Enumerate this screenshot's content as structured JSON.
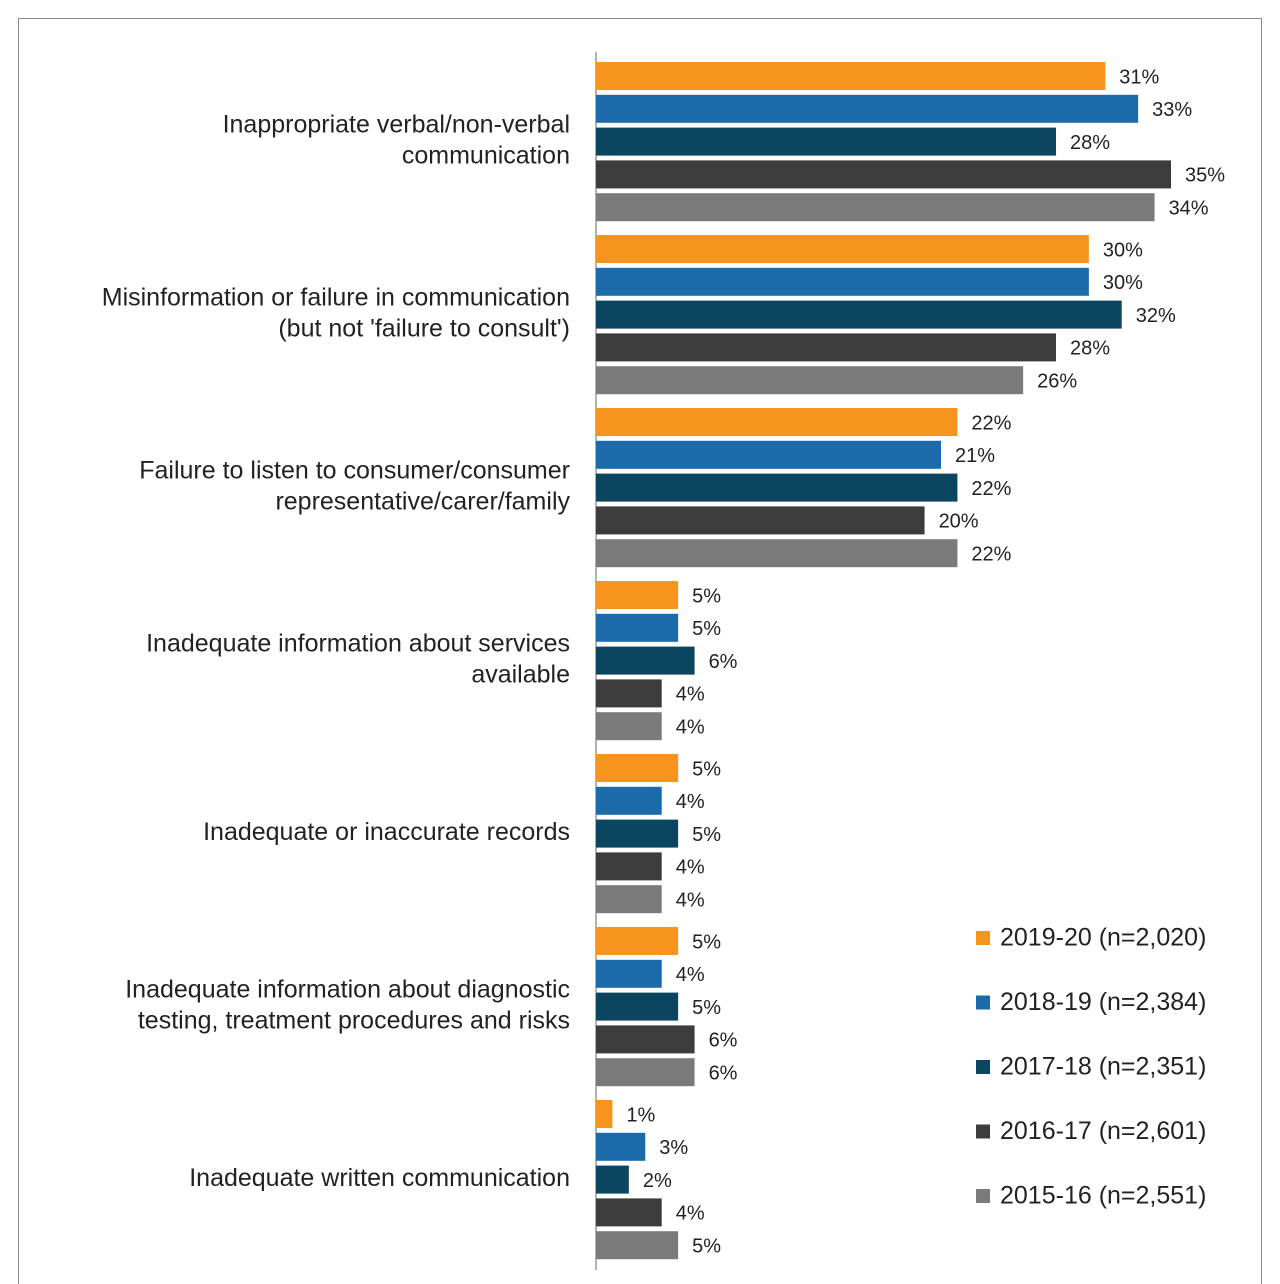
{
  "chart_data": {
    "type": "bar",
    "orientation": "horizontal",
    "categories": [
      [
        "Inappropriate verbal/non-verbal",
        "communication"
      ],
      [
        "Misinformation or failure in communication",
        "(but not 'failure to consult')"
      ],
      [
        "Failure to listen to consumer/consumer",
        "representative/carer/family"
      ],
      [
        "Inadequate information about services",
        "available"
      ],
      [
        "Inadequate or inaccurate records"
      ],
      [
        "Inadequate information about diagnostic",
        "testing, treatment procedures and risks"
      ],
      [
        "Inadequate written communication"
      ]
    ],
    "series": [
      {
        "name": "2019-20 (n=2,020)",
        "color": "#f7941d",
        "values": [
          31,
          30,
          22,
          5,
          5,
          5,
          1
        ],
        "value_labels": [
          "31%",
          "30%",
          "22%",
          "5%",
          "5%",
          "5%",
          "1%"
        ]
      },
      {
        "name": "2018-19 (n=2,384)",
        "color": "#1b6aa9",
        "values": [
          33,
          30,
          21,
          5,
          4,
          4,
          3
        ],
        "value_labels": [
          "33%",
          "30%",
          "21%",
          "5%",
          "4%",
          "4%",
          "3%"
        ]
      },
      {
        "name": "2017-18 (n=2,351)",
        "color": "#0b4560",
        "values": [
          28,
          32,
          22,
          6,
          5,
          5,
          2
        ],
        "value_labels": [
          "28%",
          "32%",
          "22%",
          "6%",
          "5%",
          "5%",
          "2%"
        ]
      },
      {
        "name": "2016-17 (n=2,601)",
        "color": "#3c3c3c",
        "values": [
          35,
          28,
          20,
          4,
          4,
          6,
          4
        ],
        "value_labels": [
          "35%",
          "28%",
          "20%",
          "4%",
          "4%",
          "6%",
          "4%"
        ]
      },
      {
        "name": "2015-16 (n=2,551)",
        "color": "#7a7a7a",
        "values": [
          34,
          26,
          22,
          4,
          4,
          6,
          5
        ],
        "value_labels": [
          "34%",
          "26%",
          "22%",
          "4%",
          "4%",
          "6%",
          "5%"
        ]
      }
    ],
    "legend": "lower right"
  }
}
